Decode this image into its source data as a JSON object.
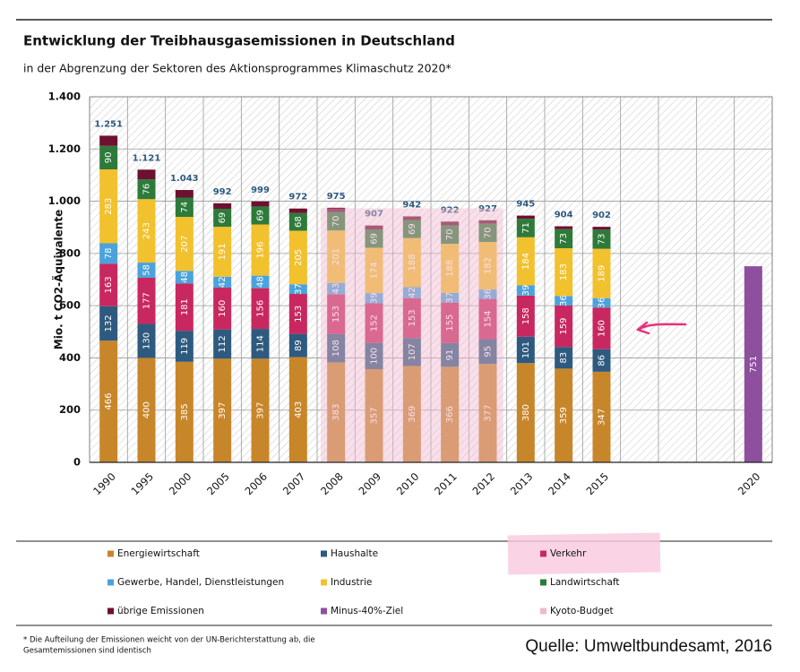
{
  "chart_data": {
    "type": "stacked-bar",
    "title": "Entwicklung der Treibhausgasemissionen in Deutschland",
    "subtitle": "in der Abgrenzung der Sektoren des Aktionsprogrammes Klimaschutz 2020*",
    "y_label": "Mio. t CO2-Äquivalente",
    "categories": [
      "1990",
      "1995",
      "2000",
      "2005",
      "2006",
      "2007",
      "2008",
      "2009",
      "2010",
      "2011",
      "2012",
      "2013",
      "2014",
      "2015",
      null,
      null,
      null,
      "2020"
    ],
    "series": [
      {
        "name": "Energiewirtschaft",
        "color": "#c8862a",
        "show_labels": true,
        "values": [
          466,
          400,
          385,
          397,
          397,
          403,
          383,
          357,
          369,
          366,
          377,
          380,
          359,
          347,
          null,
          null,
          null,
          null
        ]
      },
      {
        "name": "Haushalte",
        "color": "#2e5a7f",
        "show_labels": true,
        "values": [
          132,
          130,
          119,
          112,
          114,
          89,
          108,
          100,
          107,
          91,
          95,
          101,
          83,
          86,
          null,
          null,
          null,
          null
        ]
      },
      {
        "name": "Verkehr",
        "color": "#c8285f",
        "show_labels": true,
        "values": [
          163,
          177,
          181,
          160,
          156,
          153,
          153,
          152,
          153,
          155,
          154,
          158,
          159,
          160,
          null,
          null,
          null,
          null
        ]
      },
      {
        "name": "Gewerbe, Handel, Dienstleistungen",
        "color": "#4ba3dc",
        "show_labels": true,
        "values": [
          78,
          58,
          48,
          42,
          48,
          37,
          43,
          39,
          42,
          37,
          36,
          39,
          36,
          36,
          null,
          null,
          null,
          null
        ]
      },
      {
        "name": "Industrie",
        "color": "#f2c12e",
        "show_labels": true,
        "values": [
          283,
          243,
          207,
          191,
          196,
          205,
          201,
          174,
          188,
          188,
          182,
          184,
          183,
          189,
          null,
          null,
          null,
          null
        ]
      },
      {
        "name": "Landwirtschaft",
        "color": "#2e7a3a",
        "show_labels": true,
        "values": [
          90,
          76,
          74,
          69,
          69,
          68,
          70,
          69,
          69,
          70,
          70,
          71,
          73,
          73,
          null,
          null,
          null,
          null
        ]
      },
      {
        "name": "übrige Emissionen",
        "color": "#6e1030",
        "show_labels": false,
        "values": [
          39,
          37,
          29,
          21,
          19,
          17,
          17,
          16,
          14,
          15,
          13,
          12,
          11,
          11,
          null,
          null,
          null,
          null
        ]
      },
      {
        "name": "Minus-40%-Ziel",
        "color": "#8e4f9e",
        "show_labels": true,
        "values": [
          null,
          null,
          null,
          null,
          null,
          null,
          null,
          null,
          null,
          null,
          null,
          null,
          null,
          null,
          null,
          null,
          null,
          751
        ]
      }
    ],
    "totals": {
      "values": [
        1251,
        1121,
        1043,
        992,
        999,
        972,
        975,
        907,
        942,
        922,
        927,
        945,
        904,
        902,
        null,
        null,
        null,
        null
      ],
      "value_labels": [
        "1.251",
        "1.121",
        "1.043",
        "992",
        "999",
        "972",
        "975",
        "907",
        "942",
        "922",
        "927",
        "945",
        "904",
        "902",
        null,
        null,
        null,
        null
      ]
    },
    "kyoto_budget": {
      "name": "Kyoto-Budget",
      "color": "#f0b8cf",
      "value": 973,
      "from": "2008",
      "to": "2012"
    },
    "ylim": [
      0,
      1400
    ],
    "yticks": [
      0,
      200,
      400,
      600,
      800,
      {
        "value": 1000,
        "label": "1.000"
      },
      {
        "value": 1200,
        "label": "1.200"
      },
      {
        "value": 1400,
        "label": "1.400"
      }
    ],
    "grid": true,
    "footnote": [
      "* Die Aufteilung der Emissionen weicht von der UN-Berichterstattung ab, die",
      "Gesamtemissionen sind identisch"
    ],
    "source": "Quelle: Umweltbundesamt, 2016"
  }
}
